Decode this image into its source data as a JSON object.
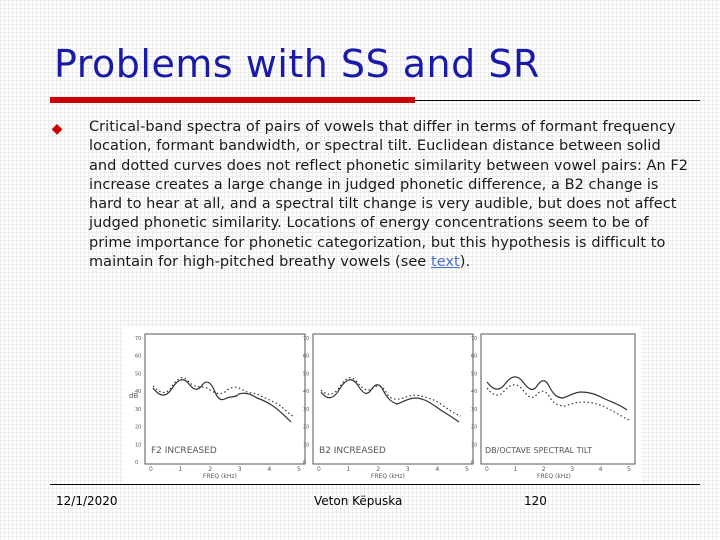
{
  "slide": {
    "title": "Problems with SS and SR",
    "body_before_link": "Critical-band spectra of pairs of vowels that differ in terms of formant frequency location, formant bandwidth, or spectral tilt. Euclidean distance between solid and dotted curves does not reflect phonetic similarity between vowel pairs:  An F2 increase creates a large change in judged phonetic difference, a B2 change is hard to hear at all, and a spectral tilt change is very audible, but does not affect judged phonetic similarity. Locations of energy concentrations seem to be of prime importance for phonetic categorization, but this hypothesis is difficult to maintain for high-pitched breathy vowels (see ",
    "link_text": "text",
    "body_after_link": ").",
    "bullet_icon": "diamond-bullet-icon"
  },
  "colors": {
    "title": "#1a1aa8",
    "accent_rule": "#cc0000",
    "bullet": "#cc0000",
    "link": "#4a72c8"
  },
  "figure": {
    "y_label": "dB",
    "y_ticks": [
      "70",
      "60",
      "50",
      "40",
      "30",
      "20",
      "10",
      "0"
    ],
    "x_ticks": [
      "0",
      "1",
      "2",
      "3",
      "4",
      "5"
    ],
    "x_label": "FREQ (kHz)",
    "panels": [
      {
        "caption": "F2 INCREASED"
      },
      {
        "caption": "B2 INCREASED"
      },
      {
        "caption": "DB/OCTAVE SPECTRAL TILT"
      }
    ]
  },
  "footer": {
    "date": "12/1/2020",
    "author": "Veton Këpuska",
    "page": "120"
  }
}
